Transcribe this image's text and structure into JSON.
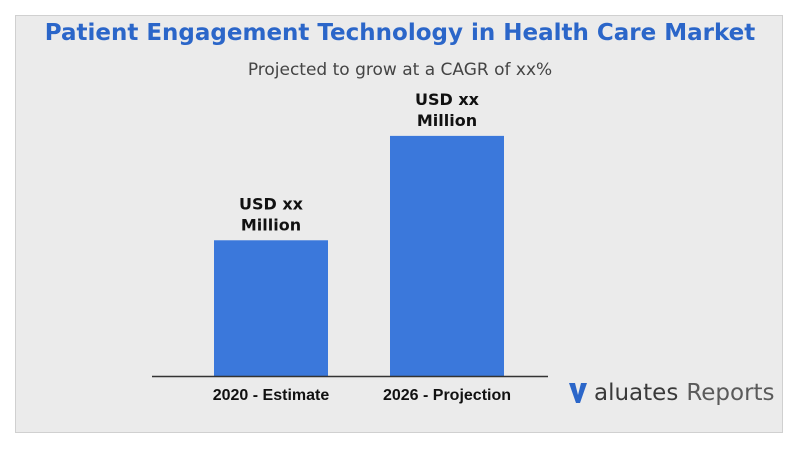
{
  "chart_data": {
    "type": "bar",
    "title": "Patient Engagement Technology in Health Care Market",
    "subtitle": "Projected to grow at a CAGR of xx%",
    "categories": [
      "2020 - Estimate",
      "2026 - Projection"
    ],
    "values": [
      0.52,
      0.92
    ],
    "data_labels": [
      [
        "USD xx",
        "Million"
      ],
      [
        "USD xx",
        "Million"
      ]
    ],
    "colors": {
      "bar": "#3b78db",
      "title": "#2b66c9"
    },
    "ylim": [
      0,
      1
    ],
    "grid": false,
    "legend": "none"
  },
  "branding": {
    "logo_v_color": "#2b66c9",
    "logo_main": "aluates",
    "logo_suffix": "Reports"
  }
}
